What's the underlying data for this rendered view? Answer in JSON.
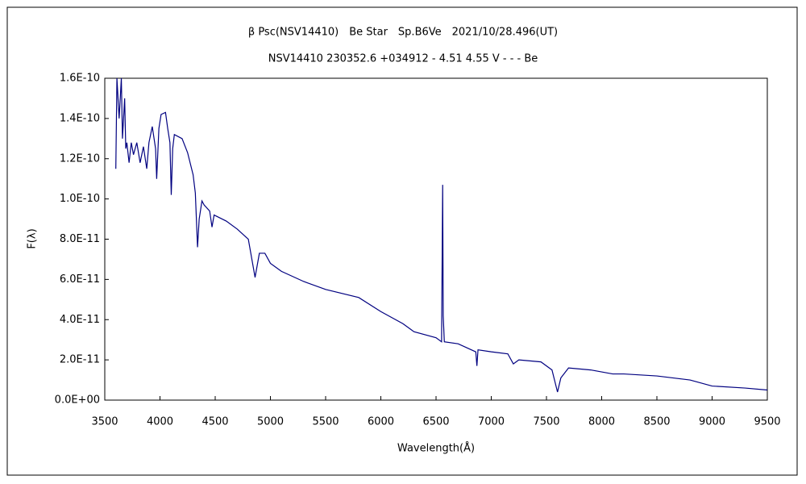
{
  "chart_data": {
    "type": "line",
    "title": "β Psc(NSV14410)　Be Star　Sp.B6Ve　2021/10/28.496(UT)",
    "subtitle": "NSV14410 230352.6 +034912 - 4.51 4.55 V - - - Be",
    "x_label": "Wavelength(Å)",
    "y_label": "F(λ)",
    "xlim": [
      3500,
      9500
    ],
    "xticks": [
      3500,
      4000,
      4500,
      5000,
      5500,
      6000,
      6500,
      7000,
      7500,
      8000,
      8500,
      9000,
      9500
    ],
    "ylim": [
      0,
      1.6e-10
    ],
    "yticks": [
      {
        "value": 0,
        "label": "0.0E+00"
      },
      {
        "value": 2e-11,
        "label": "2.0E-11"
      },
      {
        "value": 4e-11,
        "label": "4.0E-11"
      },
      {
        "value": 6e-11,
        "label": "6.0E-11"
      },
      {
        "value": 8e-11,
        "label": "8.0E-11"
      },
      {
        "value": 1e-10,
        "label": "1.0E-10"
      },
      {
        "value": 1.2e-10,
        "label": "1.2E-10"
      },
      {
        "value": 1.4e-10,
        "label": "1.4E-10"
      },
      {
        "value": 1.6e-10,
        "label": "1.6E-10"
      }
    ],
    "grid": false,
    "color": "#000080",
    "x": [
      3600,
      3610,
      3630,
      3650,
      3660,
      3680,
      3690,
      3700,
      3720,
      3740,
      3760,
      3790,
      3820,
      3850,
      3880,
      3900,
      3930,
      3960,
      3970,
      3990,
      4010,
      4050,
      4070,
      4090,
      4102,
      4115,
      4130,
      4200,
      4250,
      4300,
      4320,
      4340,
      4355,
      4380,
      4400,
      4450,
      4471,
      4490,
      4600,
      4700,
      4800,
      4861,
      4900,
      4950,
      5000,
      5100,
      5300,
      5500,
      5800,
      6000,
      6200,
      6300,
      6500,
      6550,
      6560,
      6565,
      6575,
      6700,
      6860,
      6870,
      6880,
      7000,
      7150,
      7200,
      7250,
      7450,
      7550,
      7600,
      7630,
      7700,
      7900,
      8100,
      8200,
      8500,
      8800,
      9000,
      9300,
      9500
    ],
    "values": [
      1.15e-10,
      1.6e-10,
      1.4e-10,
      1.6e-10,
      1.3e-10,
      1.5e-10,
      1.25e-10,
      1.28e-10,
      1.18e-10,
      1.28e-10,
      1.22e-10,
      1.28e-10,
      1.18e-10,
      1.26e-10,
      1.15e-10,
      1.28e-10,
      1.36e-10,
      1.25e-10,
      1.1e-10,
      1.35e-10,
      1.42e-10,
      1.43e-10,
      1.35e-10,
      1.28e-10,
      1.02e-10,
      1.25e-10,
      1.32e-10,
      1.3e-10,
      1.23e-10,
      1.12e-10,
      1.03e-10,
      7.6e-11,
      9e-11,
      9.9e-11,
      9.7e-11,
      9.4e-11,
      8.6e-11,
      9.2e-11,
      8.9e-11,
      8.5e-11,
      8e-11,
      6.1e-11,
      7.3e-11,
      7.3e-11,
      6.8e-11,
      6.4e-11,
      5.9e-11,
      5.5e-11,
      5.1e-11,
      4.4e-11,
      3.8e-11,
      3.4e-11,
      3.1e-11,
      2.9e-11,
      1.07e-10,
      4.2e-11,
      2.9e-11,
      2.8e-11,
      2.4e-11,
      1.7e-11,
      2.5e-11,
      2.4e-11,
      2.3e-11,
      1.8e-11,
      2e-11,
      1.9e-11,
      1.5e-11,
      4e-12,
      1.1e-11,
      1.6e-11,
      1.5e-11,
      1.3e-11,
      1.3e-11,
      1.2e-11,
      1e-11,
      7e-12,
      6e-12,
      5e-12
    ]
  }
}
